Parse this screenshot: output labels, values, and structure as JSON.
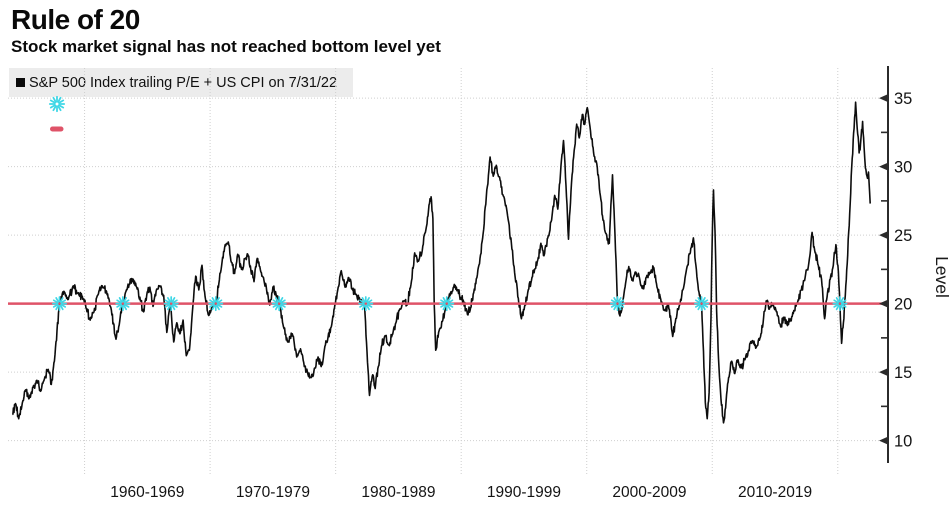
{
  "header": {
    "title": "Rule of 20",
    "subtitle": "Stock market signal has not reached bottom level yet"
  },
  "legend": {
    "series_label": "S&P 500 Index trailing P/E + US CPI on 7/31/22",
    "swatches": [
      "black-square",
      "cyan-asterisk-marker",
      "red-threshold-dash"
    ]
  },
  "chart_data": {
    "type": "line",
    "title": "Rule of 20",
    "xlabel": "",
    "ylabel": "Level",
    "grid": true,
    "legend_position": "top-left",
    "colors": {
      "series": "#0d0d0d",
      "threshold": "#df5368",
      "marker": "#3fd7e6",
      "grid": "#cfcfcf",
      "axis": "#2b2b2b",
      "text": "#141414",
      "legend_bg": "#ececec"
    },
    "x_axis": {
      "range": [
        1953.9,
        2024.0
      ],
      "gridline_decades": [
        1960,
        1970,
        1980,
        1990,
        2000,
        2010,
        2020
      ],
      "labels": [
        {
          "year": 1965,
          "text": "1960-1969"
        },
        {
          "year": 1975,
          "text": "1970-1979"
        },
        {
          "year": 1985,
          "text": "1980-1989"
        },
        {
          "year": 1995,
          "text": "1990-1999"
        },
        {
          "year": 2005,
          "text": "2000-2009"
        },
        {
          "year": 2015,
          "text": "2010-2019"
        }
      ]
    },
    "y_axis": {
      "label": "Level",
      "range": [
        8,
        37.2
      ],
      "ticks": [
        10,
        15,
        20,
        25,
        30,
        35
      ],
      "minor_ticks": [
        12.5,
        17.5,
        22.5,
        27.5,
        32.5
      ]
    },
    "threshold": {
      "value": 20,
      "label": "Rule of 20 threshold"
    },
    "crossing_markers": {
      "value": 20,
      "years": [
        1958.0,
        1963.05,
        1966.9,
        1970.45,
        1975.5,
        1982.4,
        1988.85,
        2002.45,
        2009.15,
        2020.17
      ]
    },
    "series": [
      {
        "name": "S&P 500 Index trailing P/E + US CPI on 7/31/22",
        "as_of": "7/31/22",
        "points": [
          [
            1954.25,
            11.9
          ],
          [
            1954.5,
            12.7
          ],
          [
            1954.75,
            11.6
          ],
          [
            1955.0,
            12.5
          ],
          [
            1955.3,
            13.7
          ],
          [
            1955.6,
            13.1
          ],
          [
            1955.9,
            13.9
          ],
          [
            1956.2,
            14.4
          ],
          [
            1956.5,
            13.6
          ],
          [
            1956.8,
            14.5
          ],
          [
            1957.1,
            15.2
          ],
          [
            1957.35,
            14.1
          ],
          [
            1957.6,
            15.8
          ],
          [
            1958.0,
            20.0
          ],
          [
            1958.35,
            20.9
          ],
          [
            1958.7,
            20.3
          ],
          [
            1959.1,
            21.3
          ],
          [
            1959.5,
            20.8
          ],
          [
            1959.9,
            20.3
          ],
          [
            1960.15,
            19.6
          ],
          [
            1960.45,
            18.8
          ],
          [
            1960.75,
            19.4
          ],
          [
            1961.1,
            20.7
          ],
          [
            1961.4,
            21.3
          ],
          [
            1961.75,
            20.9
          ],
          [
            1962.1,
            19.7
          ],
          [
            1962.5,
            17.4
          ],
          [
            1962.8,
            18.7
          ],
          [
            1963.05,
            20.0
          ],
          [
            1963.3,
            20.9
          ],
          [
            1963.55,
            21.4
          ],
          [
            1963.85,
            21.8
          ],
          [
            1964.15,
            21.2
          ],
          [
            1964.45,
            20.2
          ],
          [
            1964.7,
            19.4
          ],
          [
            1964.95,
            20.6
          ],
          [
            1965.2,
            21.2
          ],
          [
            1965.45,
            19.8
          ],
          [
            1965.7,
            20.9
          ],
          [
            1965.95,
            21.3
          ],
          [
            1966.3,
            20.6
          ],
          [
            1966.55,
            17.9
          ],
          [
            1966.85,
            19.9
          ],
          [
            1967.1,
            17.2
          ],
          [
            1967.35,
            18.6
          ],
          [
            1967.6,
            17.8
          ],
          [
            1967.85,
            18.8
          ],
          [
            1968.1,
            16.2
          ],
          [
            1968.35,
            16.6
          ],
          [
            1968.6,
            19.5
          ],
          [
            1968.85,
            22.0
          ],
          [
            1969.1,
            21.0
          ],
          [
            1969.35,
            22.8
          ],
          [
            1969.6,
            20.5
          ],
          [
            1969.85,
            19.2
          ],
          [
            1970.1,
            19.6
          ],
          [
            1970.45,
            20.0
          ],
          [
            1970.7,
            21.5
          ],
          [
            1970.95,
            23.0
          ],
          [
            1971.2,
            24.3
          ],
          [
            1971.45,
            24.5
          ],
          [
            1971.7,
            23.0
          ],
          [
            1971.95,
            22.2
          ],
          [
            1972.2,
            23.6
          ],
          [
            1972.5,
            22.5
          ],
          [
            1972.8,
            23.3
          ],
          [
            1973.0,
            23.6
          ],
          [
            1973.25,
            22.4
          ],
          [
            1973.5,
            21.6
          ],
          [
            1973.75,
            23.3
          ],
          [
            1974.0,
            22.5
          ],
          [
            1974.25,
            21.9
          ],
          [
            1974.5,
            21.0
          ],
          [
            1974.75,
            19.9
          ],
          [
            1975.0,
            21.2
          ],
          [
            1975.25,
            20.7
          ],
          [
            1975.5,
            20.0
          ],
          [
            1975.85,
            18.3
          ],
          [
            1976.2,
            17.2
          ],
          [
            1976.55,
            17.8
          ],
          [
            1976.9,
            16.1
          ],
          [
            1977.2,
            16.7
          ],
          [
            1977.5,
            15.4
          ],
          [
            1977.75,
            15.0
          ],
          [
            1978.05,
            14.6
          ],
          [
            1978.35,
            15.3
          ],
          [
            1978.6,
            16.1
          ],
          [
            1978.85,
            15.4
          ],
          [
            1979.1,
            16.6
          ],
          [
            1979.35,
            17.3
          ],
          [
            1979.65,
            18.3
          ],
          [
            1979.95,
            20.0
          ],
          [
            1980.2,
            21.2
          ],
          [
            1980.45,
            22.4
          ],
          [
            1980.75,
            21.2
          ],
          [
            1981.05,
            21.9
          ],
          [
            1981.35,
            21.0
          ],
          [
            1981.6,
            20.7
          ],
          [
            1981.85,
            20.4
          ],
          [
            1982.1,
            20.1
          ],
          [
            1982.3,
            20.0
          ],
          [
            1982.5,
            16.5
          ],
          [
            1982.7,
            13.3
          ],
          [
            1982.95,
            14.8
          ],
          [
            1983.15,
            13.8
          ],
          [
            1983.4,
            15.4
          ],
          [
            1983.65,
            16.9
          ],
          [
            1983.9,
            17.6
          ],
          [
            1984.2,
            17.0
          ],
          [
            1984.5,
            17.7
          ],
          [
            1984.8,
            18.6
          ],
          [
            1985.1,
            19.6
          ],
          [
            1985.4,
            20.2
          ],
          [
            1985.7,
            19.9
          ],
          [
            1986.0,
            21.4
          ],
          [
            1986.3,
            23.7
          ],
          [
            1986.6,
            23.1
          ],
          [
            1986.9,
            23.9
          ],
          [
            1987.15,
            25.2
          ],
          [
            1987.4,
            26.8
          ],
          [
            1987.6,
            27.8
          ],
          [
            1987.75,
            26.2
          ],
          [
            1987.85,
            20.0
          ],
          [
            1987.97,
            16.6
          ],
          [
            1988.2,
            17.9
          ],
          [
            1988.5,
            18.7
          ],
          [
            1988.85,
            20.0
          ],
          [
            1989.15,
            20.8
          ],
          [
            1989.45,
            21.4
          ],
          [
            1989.7,
            21.0
          ],
          [
            1990.0,
            20.4
          ],
          [
            1990.2,
            20.1
          ],
          [
            1990.5,
            19.2
          ],
          [
            1990.75,
            19.7
          ],
          [
            1991.0,
            20.8
          ],
          [
            1991.25,
            21.9
          ],
          [
            1991.5,
            23.3
          ],
          [
            1991.75,
            25.1
          ],
          [
            1992.0,
            27.8
          ],
          [
            1992.3,
            30.7
          ],
          [
            1992.55,
            29.3
          ],
          [
            1992.8,
            30.1
          ],
          [
            1993.1,
            29.0
          ],
          [
            1993.4,
            27.8
          ],
          [
            1993.7,
            26.4
          ],
          [
            1994.0,
            24.4
          ],
          [
            1994.3,
            21.9
          ],
          [
            1994.55,
            20.4
          ],
          [
            1994.8,
            18.9
          ],
          [
            1995.05,
            19.8
          ],
          [
            1995.3,
            20.8
          ],
          [
            1995.6,
            21.7
          ],
          [
            1995.85,
            22.5
          ],
          [
            1996.1,
            23.2
          ],
          [
            1996.35,
            24.4
          ],
          [
            1996.6,
            23.5
          ],
          [
            1996.9,
            24.8
          ],
          [
            1997.2,
            26.1
          ],
          [
            1997.45,
            27.9
          ],
          [
            1997.7,
            26.9
          ],
          [
            1997.95,
            30.1
          ],
          [
            1998.15,
            31.9
          ],
          [
            1998.35,
            28.6
          ],
          [
            1998.55,
            24.7
          ],
          [
            1998.75,
            28.2
          ],
          [
            1999.0,
            31.2
          ],
          [
            1999.2,
            33.1
          ],
          [
            1999.4,
            32.1
          ],
          [
            1999.65,
            33.8
          ],
          [
            1999.85,
            33.1
          ],
          [
            2000.05,
            34.3
          ],
          [
            2000.3,
            32.6
          ],
          [
            2000.55,
            31.0
          ],
          [
            2000.8,
            30.2
          ],
          [
            2001.05,
            28.1
          ],
          [
            2001.3,
            26.1
          ],
          [
            2001.55,
            25.1
          ],
          [
            2001.8,
            24.4
          ],
          [
            2002.05,
            29.4
          ],
          [
            2002.25,
            25.0
          ],
          [
            2002.45,
            20.0
          ],
          [
            2002.65,
            19.1
          ],
          [
            2002.9,
            20.3
          ],
          [
            2003.1,
            21.5
          ],
          [
            2003.35,
            22.7
          ],
          [
            2003.6,
            21.7
          ],
          [
            2003.9,
            22.3
          ],
          [
            2004.2,
            21.9
          ],
          [
            2004.45,
            21.1
          ],
          [
            2004.75,
            21.9
          ],
          [
            2005.05,
            22.3
          ],
          [
            2005.35,
            22.6
          ],
          [
            2005.6,
            21.2
          ],
          [
            2005.9,
            20.3
          ],
          [
            2006.2,
            19.5
          ],
          [
            2006.5,
            20.0
          ],
          [
            2006.85,
            17.6
          ],
          [
            2007.1,
            18.9
          ],
          [
            2007.4,
            19.9
          ],
          [
            2007.7,
            21.1
          ],
          [
            2008.0,
            22.7
          ],
          [
            2008.25,
            23.7
          ],
          [
            2008.5,
            24.8
          ],
          [
            2008.7,
            22.8
          ],
          [
            2008.9,
            21.0
          ],
          [
            2009.15,
            20.0
          ],
          [
            2009.3,
            16.5
          ],
          [
            2009.45,
            12.8
          ],
          [
            2009.6,
            11.6
          ],
          [
            2009.75,
            13.5
          ],
          [
            2009.9,
            19.0
          ],
          [
            2010.0,
            25.0
          ],
          [
            2010.1,
            28.3
          ],
          [
            2010.22,
            25.3
          ],
          [
            2010.35,
            19.5
          ],
          [
            2010.5,
            16.0
          ],
          [
            2010.7,
            13.0
          ],
          [
            2010.9,
            11.3
          ],
          [
            2011.1,
            12.9
          ],
          [
            2011.3,
            14.6
          ],
          [
            2011.55,
            15.8
          ],
          [
            2011.8,
            14.9
          ],
          [
            2012.05,
            15.9
          ],
          [
            2012.3,
            15.3
          ],
          [
            2012.6,
            15.9
          ],
          [
            2012.9,
            16.6
          ],
          [
            2013.2,
            17.3
          ],
          [
            2013.5,
            16.8
          ],
          [
            2013.8,
            17.5
          ],
          [
            2014.05,
            18.6
          ],
          [
            2014.3,
            20.2
          ],
          [
            2014.55,
            19.6
          ],
          [
            2014.85,
            19.9
          ],
          [
            2015.15,
            19.4
          ],
          [
            2015.45,
            18.3
          ],
          [
            2015.7,
            19.0
          ],
          [
            2015.95,
            18.5
          ],
          [
            2016.2,
            18.8
          ],
          [
            2016.5,
            19.5
          ],
          [
            2016.8,
            20.1
          ],
          [
            2017.1,
            21.0
          ],
          [
            2017.4,
            21.9
          ],
          [
            2017.7,
            23.0
          ],
          [
            2017.95,
            25.2
          ],
          [
            2018.2,
            23.7
          ],
          [
            2018.45,
            22.8
          ],
          [
            2018.7,
            21.8
          ],
          [
            2018.95,
            18.9
          ],
          [
            2019.15,
            20.5
          ],
          [
            2019.4,
            21.8
          ],
          [
            2019.6,
            22.6
          ],
          [
            2019.85,
            24.3
          ],
          [
            2020.05,
            22.3
          ],
          [
            2020.17,
            20.0
          ],
          [
            2020.3,
            17.1
          ],
          [
            2020.45,
            18.6
          ],
          [
            2020.6,
            20.6
          ],
          [
            2020.75,
            22.9
          ],
          [
            2020.95,
            26.6
          ],
          [
            2021.15,
            30.6
          ],
          [
            2021.3,
            32.8
          ],
          [
            2021.42,
            34.7
          ],
          [
            2021.55,
            32.8
          ],
          [
            2021.7,
            31.0
          ],
          [
            2021.85,
            32.1
          ],
          [
            2021.98,
            33.3
          ],
          [
            2022.1,
            31.4
          ],
          [
            2022.2,
            29.9
          ],
          [
            2022.33,
            29.3
          ],
          [
            2022.45,
            29.6
          ],
          [
            2022.58,
            27.3
          ]
        ]
      }
    ]
  }
}
